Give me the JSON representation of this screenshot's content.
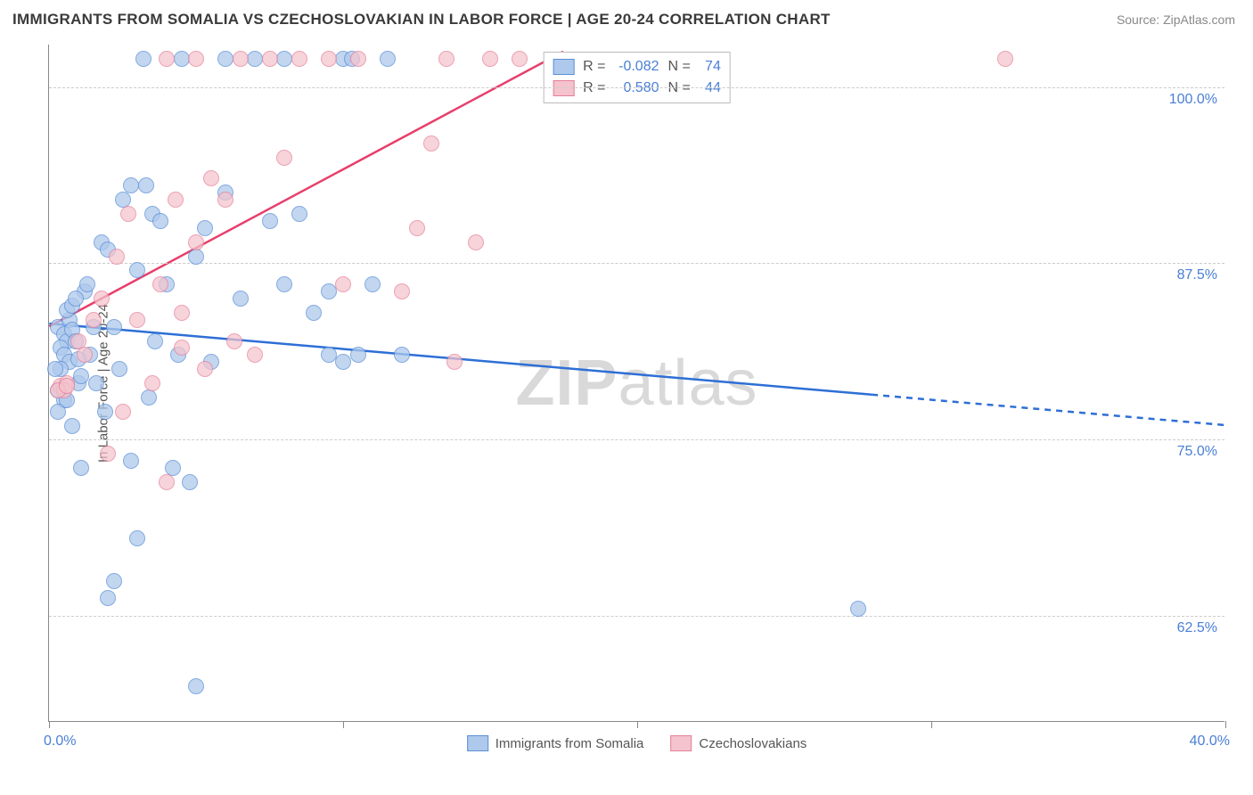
{
  "header": {
    "title": "IMMIGRANTS FROM SOMALIA VS CZECHOSLOVAKIAN IN LABOR FORCE | AGE 20-24 CORRELATION CHART",
    "source": "Source: ZipAtlas.com"
  },
  "chart": {
    "type": "scatter",
    "background_color": "#ffffff",
    "grid_color": "#cccccc",
    "axis_color": "#888888",
    "yaxis_title": "In Labor Force | Age 20-24",
    "xlim": [
      0,
      40
    ],
    "ylim": [
      55,
      103
    ],
    "ytick_labels": [
      "62.5%",
      "75.0%",
      "87.5%",
      "100.0%"
    ],
    "ytick_values": [
      62.5,
      75.0,
      87.5,
      100.0
    ],
    "xtick_values": [
      0,
      10,
      20,
      30,
      40
    ],
    "xaxis_left_label": "0.0%",
    "xaxis_right_label": "40.0%",
    "label_color": "#4a7fd6",
    "label_fontsize": 16,
    "series": [
      {
        "name": "Immigrants from Somalia",
        "color_fill": "#aec9ec",
        "color_stroke": "#5b8fd6",
        "marker_radius": 9,
        "marker_opacity": 0.75,
        "R": "-0.082",
        "N": "74",
        "trend": {
          "x1": 0,
          "y1": 83.2,
          "x2": 40,
          "y2": 76.0,
          "dash_from_x": 28,
          "color": "#2d6fd6",
          "width": 2.5
        },
        "points": [
          [
            0.3,
            83
          ],
          [
            0.5,
            82.5
          ],
          [
            0.6,
            82
          ],
          [
            0.4,
            81.5
          ],
          [
            0.7,
            83.5
          ],
          [
            0.8,
            82.8
          ],
          [
            0.6,
            84.2
          ],
          [
            0.9,
            82
          ],
          [
            0.5,
            81
          ],
          [
            0.7,
            80.5
          ],
          [
            0.4,
            80
          ],
          [
            0.8,
            84.5
          ],
          [
            1.0,
            79
          ],
          [
            0.3,
            78.5
          ],
          [
            1.2,
            85.5
          ],
          [
            1.5,
            83
          ],
          [
            1.4,
            81
          ],
          [
            1.1,
            79.5
          ],
          [
            0.5,
            77.8
          ],
          [
            0.6,
            77.8
          ],
          [
            1.0,
            80.7
          ],
          [
            1.3,
            86
          ],
          [
            1.8,
            89
          ],
          [
            2.0,
            63.8
          ],
          [
            2.2,
            65
          ],
          [
            2.0,
            88.5
          ],
          [
            2.4,
            80
          ],
          [
            2.5,
            92
          ],
          [
            2.8,
            73.5
          ],
          [
            3.0,
            68
          ],
          [
            3.0,
            87
          ],
          [
            3.2,
            102
          ],
          [
            3.4,
            78
          ],
          [
            3.5,
            91
          ],
          [
            3.6,
            82
          ],
          [
            3.8,
            90.5
          ],
          [
            4.0,
            86
          ],
          [
            4.2,
            73
          ],
          [
            4.4,
            81
          ],
          [
            4.8,
            72
          ],
          [
            5.0,
            88
          ],
          [
            5.3,
            90
          ],
          [
            5.0,
            57.5
          ],
          [
            5.5,
            80.5
          ],
          [
            6.0,
            92.5
          ],
          [
            6.0,
            102
          ],
          [
            6.5,
            85
          ],
          [
            7.0,
            102
          ],
          [
            7.5,
            90.5
          ],
          [
            8.0,
            102
          ],
          [
            8.0,
            86
          ],
          [
            8.5,
            91
          ],
          [
            9.0,
            84
          ],
          [
            9.5,
            85.5
          ],
          [
            10.0,
            102
          ],
          [
            10.0,
            80.5
          ],
          [
            10.5,
            81
          ],
          [
            10.3,
            102
          ],
          [
            11.0,
            86
          ],
          [
            12.0,
            81
          ],
          [
            9.5,
            81
          ],
          [
            11.5,
            102
          ],
          [
            4.5,
            102
          ],
          [
            2.8,
            93
          ],
          [
            3.3,
            93
          ],
          [
            0.2,
            80
          ],
          [
            0.9,
            85
          ],
          [
            1.6,
            79
          ],
          [
            2.2,
            83
          ],
          [
            1.9,
            77
          ],
          [
            27.5,
            63
          ],
          [
            1.1,
            73
          ],
          [
            0.3,
            77
          ],
          [
            0.8,
            76
          ]
        ]
      },
      {
        "name": "Czechoslovakians",
        "color_fill": "#f4c3cd",
        "color_stroke": "#e57f98",
        "marker_radius": 9,
        "marker_opacity": 0.72,
        "R": "0.580",
        "N": "44",
        "trend": {
          "x1": 0,
          "y1": 83.0,
          "x2": 17.5,
          "y2": 102.5,
          "color": "#e83e6b",
          "width": 2.5
        },
        "points": [
          [
            0.4,
            78.8
          ],
          [
            0.6,
            79
          ],
          [
            0.5,
            78.5
          ],
          [
            1.0,
            82
          ],
          [
            1.2,
            81
          ],
          [
            1.5,
            83.5
          ],
          [
            1.8,
            85
          ],
          [
            2.0,
            74
          ],
          [
            2.3,
            88
          ],
          [
            2.5,
            77
          ],
          [
            3.0,
            83.5
          ],
          [
            3.5,
            79
          ],
          [
            3.8,
            86
          ],
          [
            4.0,
            72
          ],
          [
            4.3,
            92
          ],
          [
            4.5,
            84
          ],
          [
            5.0,
            102
          ],
          [
            5.3,
            80
          ],
          [
            5.5,
            93.5
          ],
          [
            6.0,
            92
          ],
          [
            6.5,
            102
          ],
          [
            7.0,
            81
          ],
          [
            7.5,
            102
          ],
          [
            8.0,
            95
          ],
          [
            8.5,
            102
          ],
          [
            5.0,
            89
          ],
          [
            9.5,
            102
          ],
          [
            10.0,
            86
          ],
          [
            10.5,
            102
          ],
          [
            12.0,
            85.5
          ],
          [
            12.5,
            90
          ],
          [
            13.0,
            96
          ],
          [
            13.5,
            102
          ],
          [
            14.5,
            89
          ],
          [
            15.0,
            102
          ],
          [
            16.0,
            102
          ],
          [
            4.0,
            102
          ],
          [
            4.5,
            81.5
          ],
          [
            2.7,
            91
          ],
          [
            6.3,
            82
          ],
          [
            32.5,
            102
          ],
          [
            0.3,
            78.5
          ],
          [
            0.6,
            78.8
          ],
          [
            13.8,
            80.5
          ]
        ]
      }
    ],
    "legend_top": {
      "R_label": "R =",
      "N_label": "N ="
    },
    "watermark": {
      "part1": "ZIP",
      "part2": "atlas"
    }
  }
}
